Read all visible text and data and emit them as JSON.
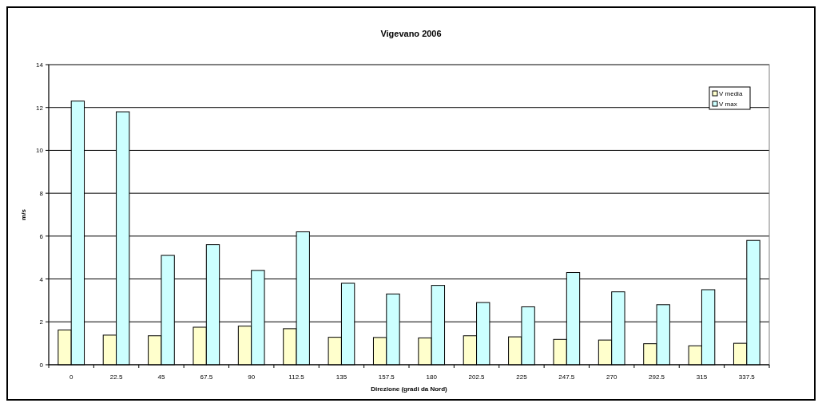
{
  "chart_data": {
    "type": "bar",
    "title": "Vigevano 2006",
    "xlabel": "Direzione (gradi da Nord)",
    "ylabel": "m/s",
    "categories": [
      "0",
      "22.5",
      "45",
      "67.5",
      "90",
      "112.5",
      "135",
      "157.5",
      "180",
      "202.5",
      "225",
      "247.5",
      "270",
      "292.5",
      "315",
      "337.5"
    ],
    "series": [
      {
        "name": "V media",
        "color": "#ffffcc",
        "values": [
          1.62,
          1.38,
          1.35,
          1.75,
          1.8,
          1.68,
          1.28,
          1.27,
          1.25,
          1.35,
          1.3,
          1.18,
          1.15,
          0.98,
          0.88,
          1.0
        ]
      },
      {
        "name": "V max",
        "color": "#ccffff",
        "values": [
          12.3,
          11.8,
          5.1,
          5.6,
          4.4,
          6.2,
          3.8,
          3.3,
          3.7,
          2.9,
          2.7,
          4.3,
          3.4,
          2.8,
          3.5,
          5.8
        ]
      }
    ],
    "ylim": [
      0,
      14
    ],
    "yticks": [
      0,
      2,
      4,
      6,
      8,
      10,
      12,
      14
    ],
    "grid": "y",
    "legend": "top right"
  }
}
